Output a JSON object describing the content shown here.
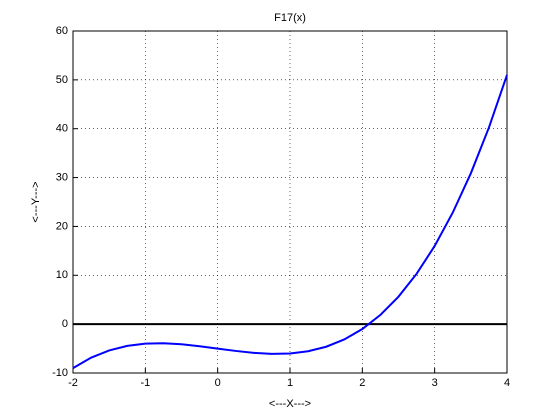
{
  "chart_data": {
    "type": "line",
    "title": "F17(x)",
    "x_label": "<---X--->",
    "y_label": "<---Y--->",
    "x": [
      -2,
      -1.75,
      -1.5,
      -1.25,
      -1,
      -0.75,
      -0.5,
      -0.25,
      0,
      0.25,
      0.5,
      0.75,
      1,
      1.25,
      1.5,
      1.75,
      2,
      2.25,
      2.5,
      2.75,
      3,
      3.25,
      3.5,
      3.75,
      4
    ],
    "series": [
      {
        "color": "#0000ff",
        "values": [
          -9,
          -6.859375,
          -5.375,
          -4.453125,
          -4,
          -3.921875,
          -4.125,
          -4.515625,
          -5,
          -5.484375,
          -5.875,
          -6.078125,
          -6,
          -5.546875,
          -4.625,
          -3.140625,
          -1,
          1.890625,
          5.625,
          10.296875,
          16,
          22.828125,
          30.875,
          40.234375,
          51
        ]
      }
    ],
    "reference_line": {
      "value": 0,
      "color": "#000000"
    },
    "xlim": [
      -2,
      4
    ],
    "ylim": [
      -10,
      60
    ],
    "xticks": [
      -2,
      -1,
      0,
      1,
      2,
      3,
      4
    ],
    "yticks": [
      -10,
      0,
      10,
      20,
      30,
      40,
      50,
      60
    ],
    "grid": true
  }
}
